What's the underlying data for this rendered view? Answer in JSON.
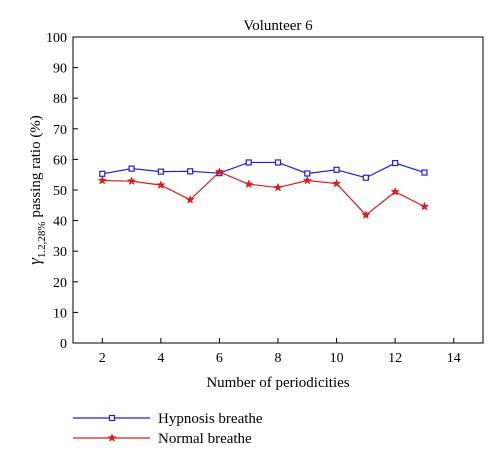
{
  "chart_data": {
    "type": "line",
    "title": "Volunteer 6",
    "xlabel": "Number of periodicities",
    "ylabel": {
      "symbol": "γ",
      "subscript": "1.2,28%",
      "text": " passing ratio (%)"
    },
    "xlim": [
      1,
      15
    ],
    "ylim": [
      0,
      100
    ],
    "xticks": [
      2,
      4,
      6,
      8,
      10,
      12,
      14
    ],
    "yticks": [
      0,
      10,
      20,
      30,
      40,
      50,
      60,
      70,
      80,
      90,
      100
    ],
    "x": [
      2,
      3,
      4,
      5,
      6,
      7,
      8,
      9,
      10,
      11,
      12,
      13
    ],
    "series": [
      {
        "name": "Hypnosis breathe",
        "color": "#1f1fd6",
        "marker": "square",
        "values": [
          55.3,
          57.0,
          56.0,
          56.1,
          55.5,
          59.0,
          59.0,
          55.4,
          56.6,
          54.0,
          58.8,
          55.7
        ]
      },
      {
        "name": "Normal breathe",
        "color": "#d62020",
        "marker": "star",
        "values": [
          53.1,
          52.9,
          51.6,
          46.8,
          55.9,
          51.9,
          50.8,
          53.1,
          52.1,
          41.8,
          49.4,
          44.6
        ]
      }
    ],
    "grid": false,
    "legend_position": "bottom-left"
  }
}
